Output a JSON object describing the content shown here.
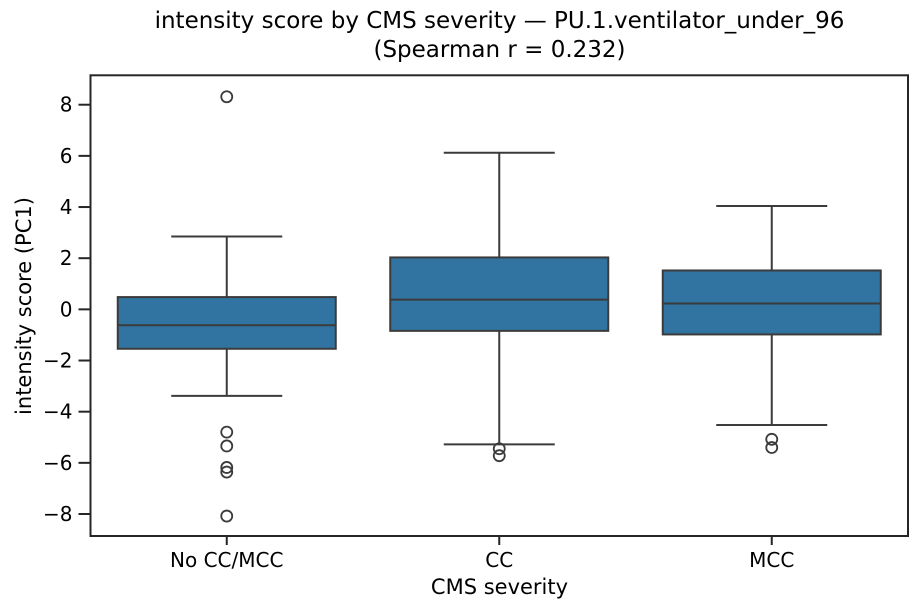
{
  "chart_data": {
    "type": "box",
    "title": "intensity score by CMS severity — PU.1.ventilator_under_96",
    "subtitle": "(Spearman r = 0.232)",
    "spearman_r": 0.232,
    "xlabel": "CMS severity",
    "ylabel": "intensity score (PC1)",
    "categories": [
      "No CC/MCC",
      "CC",
      "MCC"
    ],
    "yticks": [
      -8,
      -6,
      -4,
      -2,
      0,
      2,
      4,
      6,
      8
    ],
    "ylim": [
      -8.86,
      9.15
    ],
    "grid": false,
    "legend": null,
    "boxes": [
      {
        "category": "No CC/MCC",
        "whislo": -3.38,
        "q1": -1.54,
        "med": -0.62,
        "q3": 0.48,
        "whishi": 2.85,
        "fliers": [
          8.31,
          -4.8,
          -5.34,
          -6.18,
          -6.36,
          -8.08
        ]
      },
      {
        "category": "CC",
        "whislo": -5.28,
        "q1": -0.84,
        "med": 0.38,
        "q3": 2.03,
        "whishi": 6.12,
        "fliers": [
          -5.45,
          -5.72
        ]
      },
      {
        "category": "MCC",
        "whislo": -4.52,
        "q1": -0.98,
        "med": 0.23,
        "q3": 1.52,
        "whishi": 4.04,
        "fliers": [
          -5.08,
          -5.4
        ]
      }
    ],
    "colors": {
      "box_fill": "#3274a1",
      "line": "#3b3b3b",
      "spine": "#262626",
      "text": "#000000",
      "background": "#ffffff"
    }
  }
}
